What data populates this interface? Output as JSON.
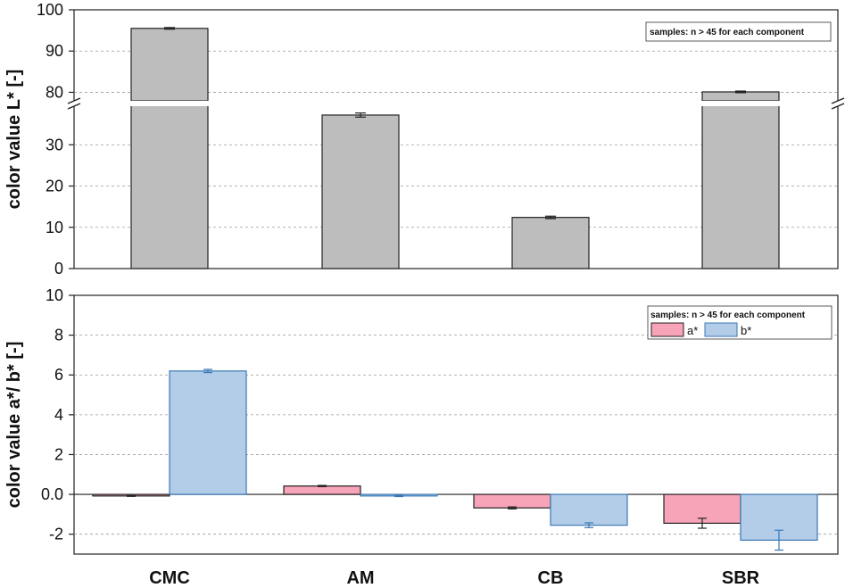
{
  "chart_data": [
    {
      "type": "bar",
      "categories": [
        "CMC",
        "AM",
        "CB",
        "SBR"
      ],
      "ylabel": "color value L*  [-]",
      "axis_break": {
        "lower": [
          0,
          40
        ],
        "upper": [
          77.5,
          100
        ]
      },
      "lower_ticks": [
        0,
        10,
        20,
        30
      ],
      "upper_ticks": [
        80,
        90,
        100
      ],
      "grid": true,
      "legend_note": "samples: n > 45 for each component",
      "legend_position": "top-right",
      "series": [
        {
          "values": [
            95.5,
            37.2,
            12.4,
            80.1
          ],
          "errors": [
            0.2,
            0.5,
            0.3,
            0.2
          ],
          "color": "#bdbdbd"
        }
      ]
    },
    {
      "type": "bar",
      "categories": [
        "CMC",
        "AM",
        "CB",
        "SBR"
      ],
      "ylabel": "color value a*/ b* [-]",
      "ylim": [
        -3,
        10
      ],
      "yticks": [
        -2,
        0,
        2,
        4,
        6,
        8,
        10
      ],
      "ytick_labels": [
        "-2",
        "0.0",
        "2",
        "4",
        "6",
        "8",
        "10"
      ],
      "grid": true,
      "legend_note": "samples: n > 45 for each component",
      "legend_position": "top-right",
      "series": [
        {
          "name": "a*",
          "values": [
            -0.08,
            0.42,
            -0.68,
            -1.45
          ],
          "errors": [
            0.02,
            0.03,
            0.05,
            0.25
          ],
          "color": "#f7a3b8",
          "edge": "#222222"
        },
        {
          "name": "b*",
          "values": [
            6.2,
            -0.08,
            -1.55,
            -2.3
          ],
          "errors": [
            0.08,
            0.03,
            0.12,
            0.5
          ],
          "color": "#b3cde8",
          "edge": "#3a78b5"
        }
      ]
    }
  ],
  "colors": {
    "gray_bar": "#bdbdbd",
    "a_star": "#f7a3b8",
    "b_star": "#b3cde8",
    "b_star_edge": "#3a78b5"
  }
}
